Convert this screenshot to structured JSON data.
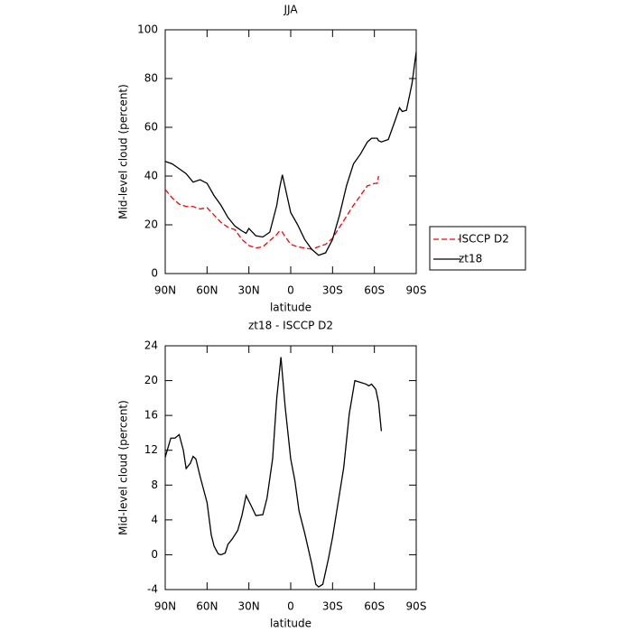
{
  "chart_data": [
    {
      "type": "line",
      "title": "JJA",
      "x_label": "latitude",
      "y_label": "Mid-level cloud (percent)",
      "x": [
        90,
        85,
        80,
        75,
        70,
        65,
        60,
        55,
        50,
        45,
        40,
        35,
        32,
        30,
        25,
        20,
        15,
        10,
        8,
        6,
        5,
        0,
        -5,
        -10,
        -15,
        -20,
        -25,
        -30,
        -35,
        -40,
        -45,
        -50,
        -55,
        -58,
        -60,
        -62,
        -63,
        -65,
        -70,
        -75,
        -78,
        -80,
        -83,
        -87,
        -90
      ],
      "series": [
        {
          "name": "ISCCP D2",
          "color": "#ff0000",
          "style": "dashed",
          "values": [
            34.5,
            31,
            28.5,
            27.5,
            27.5,
            26.5,
            27,
            24,
            21,
            19,
            18,
            14,
            12.5,
            11.5,
            10.5,
            11,
            13.5,
            16,
            17.5,
            17,
            16,
            12,
            11,
            10.5,
            10,
            11,
            12,
            14.5,
            19,
            23.5,
            28,
            32,
            36,
            36.5,
            37,
            37,
            40,
            null,
            null,
            null,
            null,
            null,
            null,
            null,
            null
          ]
        },
        {
          "name": "zt18",
          "color": "#000000",
          "style": "solid",
          "values": [
            46,
            45,
            43,
            41,
            37.5,
            38.5,
            37,
            32,
            28,
            23,
            19.5,
            17.5,
            16.5,
            18.5,
            15.5,
            15,
            17,
            28,
            35,
            40.5,
            38,
            25,
            20,
            14,
            10,
            7.5,
            8.5,
            14,
            24,
            36,
            45,
            49,
            54,
            55.5,
            55.5,
            55.5,
            54.5,
            54,
            55,
            63,
            68,
            66.5,
            67,
            78,
            91
          ]
        }
      ],
      "xlim": [
        90,
        -90
      ],
      "xticks": [
        {
          "value": 90,
          "label": "90N"
        },
        {
          "value": 60,
          "label": "60N"
        },
        {
          "value": 30,
          "label": "30N"
        },
        0,
        {
          "value": -30,
          "label": "30S"
        },
        {
          "value": -60,
          "label": "60S"
        },
        {
          "value": -90,
          "label": "90S"
        }
      ],
      "ylim": [
        0,
        100
      ],
      "yticks": [
        0,
        20,
        40,
        60,
        80,
        100
      ],
      "legend": "outside-right"
    },
    {
      "type": "line",
      "title": "zt18 - ISCCP D2",
      "x_label": "latitude",
      "y_label": "Mid-level cloud (percent)",
      "x": [
        90,
        86,
        83,
        80,
        77,
        75,
        72,
        70,
        68,
        65,
        60,
        57,
        55,
        52,
        50,
        47,
        45,
        42,
        38,
        35,
        32,
        28,
        25,
        20,
        17,
        13,
        10,
        7,
        4,
        0,
        -3,
        -6,
        -10,
        -15,
        -18,
        -20,
        -23,
        -27,
        -30,
        -34,
        -38,
        -42,
        -46,
        -50,
        -54,
        -56,
        -58,
        -61,
        -63,
        -65
      ],
      "series": [
        {
          "color": "#000000",
          "style": "solid",
          "values": [
            11.2,
            13.4,
            13.4,
            13.8,
            12,
            9.9,
            10.5,
            11.3,
            11,
            9,
            6,
            2.3,
            1,
            0.1,
            0,
            0.2,
            1.2,
            1.8,
            2.8,
            4.5,
            6.8,
            5.5,
            4.5,
            4.6,
            6.5,
            11,
            18,
            22.7,
            17,
            11,
            8.5,
            5,
            2.5,
            -1,
            -3.4,
            -3.7,
            -3.4,
            -0.5,
            2,
            6,
            10,
            16.2,
            20,
            19.8,
            19.6,
            19.4,
            19.6,
            19,
            17.5,
            14.2
          ]
        }
      ],
      "xlim": [
        90,
        -90
      ],
      "xticks": [
        {
          "value": 90,
          "label": "90N"
        },
        {
          "value": 60,
          "label": "60N"
        },
        {
          "value": 30,
          "label": "30N"
        },
        0,
        {
          "value": -30,
          "label": "30S"
        },
        {
          "value": -60,
          "label": "60S"
        },
        {
          "value": -90,
          "label": "90S"
        }
      ],
      "ylim": [
        -4,
        24
      ],
      "yticks": [
        -4,
        0,
        4,
        8,
        12,
        16,
        20,
        24
      ]
    }
  ]
}
